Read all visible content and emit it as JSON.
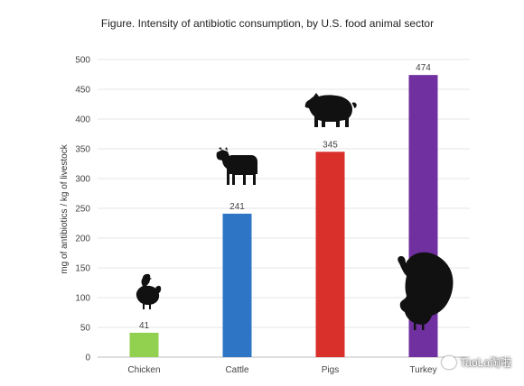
{
  "chart_data": {
    "type": "bar",
    "title": "Figure. Intensity of antibiotic consumption, by U.S. food animal sector",
    "ylabel": "mg of antibiotics / kg of livestock",
    "xlabel": "",
    "categories": [
      "Chicken",
      "Cattle",
      "Pigs",
      "Turkey"
    ],
    "values": [
      41,
      241,
      345,
      474
    ],
    "data_labels": [
      "41",
      "241",
      "345",
      "474"
    ],
    "colors": [
      "#92d050",
      "#2e75c6",
      "#d9302c",
      "#7030a0"
    ],
    "ylim": [
      0,
      500
    ],
    "yticks": [
      0,
      50,
      100,
      150,
      200,
      250,
      300,
      350,
      400,
      450,
      500
    ],
    "grid": true,
    "legend": "none",
    "icons": [
      "chicken-icon",
      "cattle-icon",
      "pig-icon",
      "turkey-icon"
    ]
  },
  "watermark": {
    "text": "TaoLa淘啦"
  }
}
